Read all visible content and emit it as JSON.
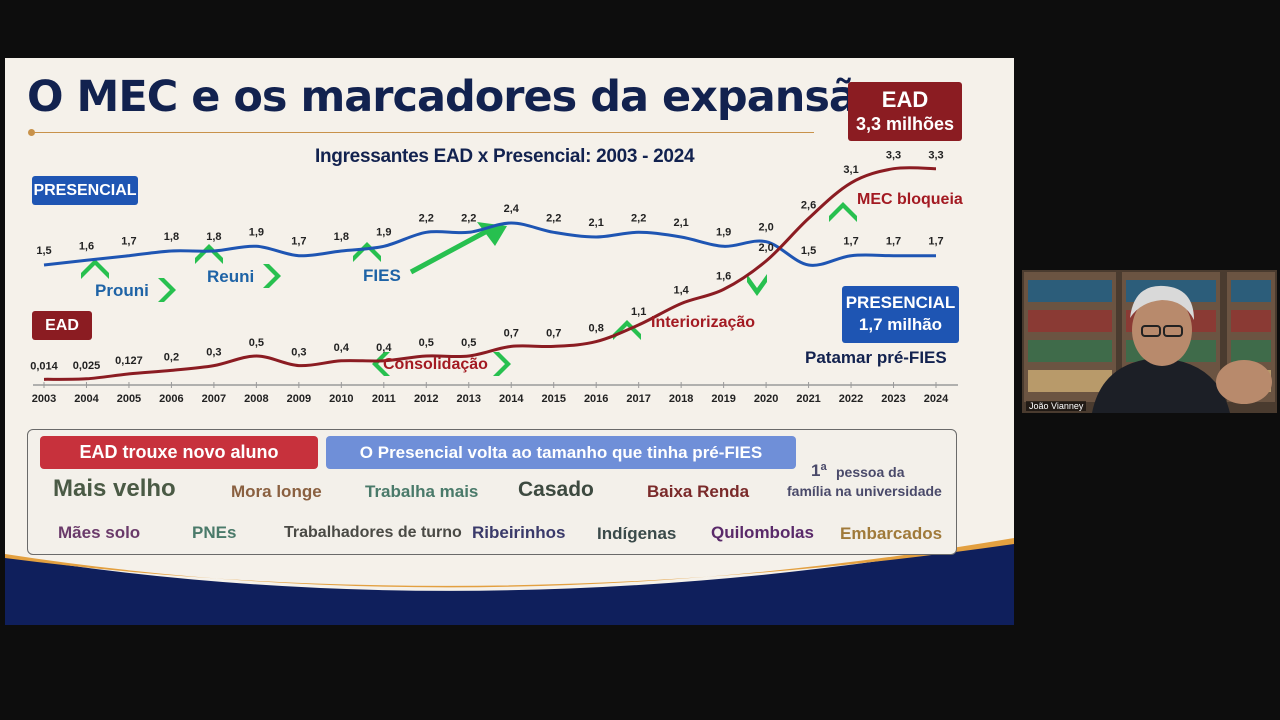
{
  "slide": {
    "title": "O MEC e os marcadores da expansão",
    "subtitle": "Ingressantes EAD x Presencial: 2003 - 2024",
    "ead_box": {
      "line1": "EAD",
      "line2": "3,3 milhões"
    },
    "presencial_tag": "PRESENCIAL",
    "ead_tag": "EAD",
    "presencial_box": {
      "line1": "PRESENCIAL",
      "line2": "1,7 milhão"
    },
    "patamar": "Patamar  pré-FIES",
    "annotations": {
      "prouni": "Prouni",
      "reuni": "Reuni",
      "fies": "FIES",
      "consolidacao": "Consolidação",
      "interiorizacao": "Interiorização",
      "mec_bloqueia": "MEC bloqueia"
    },
    "panel": {
      "ead_header": "EAD trouxe novo aluno",
      "pres_header": "O Presencial volta ao tamanho que tinha  pré-FIES",
      "row1": [
        "Mais velho",
        "Mora longe",
        "Trabalha mais",
        "Casado",
        "Baixa Renda"
      ],
      "primeira_num": "1ª",
      "primeira_l1": "pessoa da",
      "primeira_l2": "família na universidade",
      "row2": [
        "Mães solo",
        "PNEs",
        "Trabalhadores de turno",
        "Ribeirinhos",
        "Indígenas",
        "Quilombolas",
        "Embarcados"
      ]
    },
    "colors": {
      "navy": "#12224f",
      "presencial": "#1e55b3",
      "ead": "#8b1c22",
      "accent": "#e3a040",
      "arrow": "#27c04f"
    }
  },
  "webcam": {
    "name": "João Vianney"
  },
  "chart_data": {
    "type": "line",
    "title": "Ingressantes EAD x Presencial: 2003 - 2024",
    "x": [
      "2003",
      "2004",
      "2005",
      "2006",
      "2007",
      "2008",
      "2009",
      "2010",
      "2011",
      "2012",
      "2013",
      "2014",
      "2015",
      "2016",
      "2017",
      "2018",
      "2019",
      "2020",
      "2021",
      "2022",
      "2023",
      "2024"
    ],
    "series": [
      {
        "name": "PRESENCIAL",
        "values": [
          1.5,
          1.6,
          1.7,
          1.8,
          1.8,
          1.9,
          1.7,
          1.8,
          1.9,
          2.2,
          2.2,
          2.4,
          2.2,
          2.1,
          2.2,
          2.1,
          1.9,
          2.0,
          1.5,
          1.7,
          1.7,
          1.7
        ],
        "labels": [
          "1,5",
          "1,6",
          "1,7",
          "1,8",
          "1,8",
          "1,9",
          "1,7",
          "1,8",
          "1,9",
          "2,2",
          "2,2",
          "2,4",
          "2,2",
          "2,1",
          "2,2",
          "2,1",
          "1,9",
          "2,0",
          "1,5",
          "1,7",
          "1,7",
          "1,7"
        ]
      },
      {
        "name": "EAD",
        "values": [
          0.014,
          0.025,
          0.127,
          0.2,
          0.3,
          0.5,
          0.3,
          0.4,
          0.4,
          0.5,
          0.5,
          0.7,
          0.7,
          0.8,
          1.1,
          1.4,
          1.6,
          2.0,
          2.6,
          3.1,
          3.3,
          3.3
        ],
        "labels": [
          "0,014",
          "0,025",
          "0,127",
          "0,2",
          "0,3",
          "0,5",
          "0,3",
          "0,4",
          "0,4",
          "0,5",
          "0,5",
          "0,7",
          "0,7",
          "0,8",
          "1,1",
          "1,4",
          "1,6",
          "2,0",
          "2,6",
          "3,1",
          "3,3",
          "3,3"
        ]
      }
    ]
  }
}
